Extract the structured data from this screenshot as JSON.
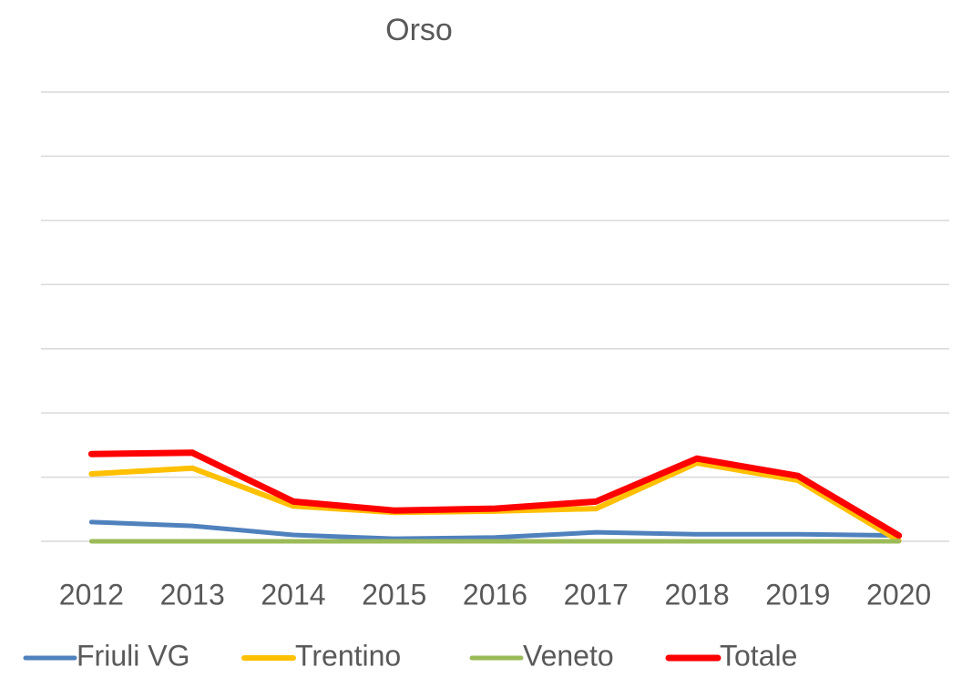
{
  "chart_data": {
    "type": "line",
    "title": "Orso",
    "categories": [
      "2012",
      "2013",
      "2014",
      "2015",
      "2016",
      "2017",
      "2018",
      "2019",
      "2020"
    ],
    "series": [
      {
        "name": "Friuli VG",
        "color": "#4f81bd",
        "values": [
          0.3,
          0.24,
          0.1,
          0.04,
          0.06,
          0.14,
          0.11,
          0.11,
          0.09
        ]
      },
      {
        "name": "Trentino",
        "color": "#ffc000",
        "values": [
          1.05,
          1.14,
          0.55,
          0.45,
          0.47,
          0.51,
          1.22,
          0.95,
          0.01
        ]
      },
      {
        "name": "Veneto",
        "color": "#9bbb59",
        "values": [
          0,
          0,
          0,
          0,
          0,
          0,
          0,
          0,
          0
        ]
      },
      {
        "name": "Totale",
        "color": "#ff0000",
        "values": [
          1.36,
          1.38,
          0.62,
          0.48,
          0.51,
          0.62,
          1.29,
          1.02,
          0.09
        ]
      }
    ],
    "ylim": [
      0,
      7
    ],
    "yticks": [
      0,
      1,
      2,
      3,
      4,
      5,
      6,
      7
    ],
    "grid": true,
    "legend": "bottom"
  }
}
